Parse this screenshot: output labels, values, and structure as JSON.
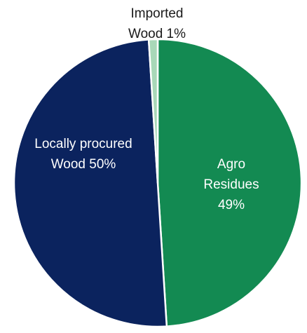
{
  "chart_data": {
    "type": "pie",
    "start_angle_deg": 0,
    "direction": "clockwise",
    "slices": [
      {
        "label_lines": [
          "Agro",
          "Residues",
          "49%"
        ],
        "value": 49,
        "color": "#138a52",
        "label_style": "light"
      },
      {
        "label_lines": [
          "Locally procured",
          "Wood 50%"
        ],
        "value": 50,
        "color": "#0b235e",
        "label_style": "light"
      },
      {
        "label_lines": [
          "Imported",
          "Wood 1%"
        ],
        "value": 1,
        "color": "#a8d8b8",
        "label_style": "dark"
      }
    ],
    "edge_color": "#ffffff",
    "legend": "none"
  }
}
